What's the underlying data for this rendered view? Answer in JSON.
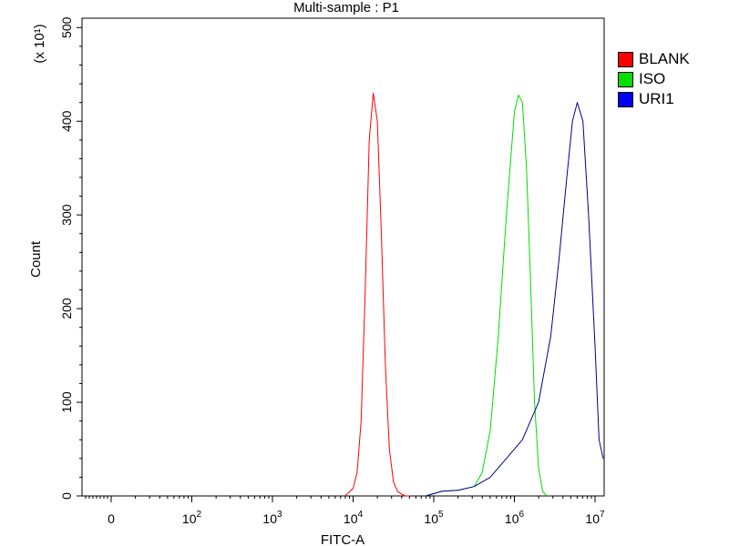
{
  "chart_data": {
    "type": "line",
    "title": "Multi-sample : P1",
    "xlabel": "FITC-A",
    "ylabel": "Count",
    "y_multiplier_label": "(x 10¹)",
    "x_scale": "biexponential",
    "xlim": [
      -2,
      7.1
    ],
    "ylim": [
      0,
      510
    ],
    "y_ticks": [
      0,
      100,
      200,
      300,
      400,
      500
    ],
    "x_tick_labels": [
      {
        "value": 0,
        "base": "0",
        "exp": ""
      },
      {
        "value": 2,
        "base": "10",
        "exp": "2"
      },
      {
        "value": 3,
        "base": "10",
        "exp": "3"
      },
      {
        "value": 4,
        "base": "10",
        "exp": "4"
      },
      {
        "value": 5,
        "base": "10",
        "exp": "5"
      },
      {
        "value": 6,
        "base": "10",
        "exp": "6"
      },
      {
        "value": 7,
        "base": "10",
        "exp": "7"
      }
    ],
    "legend_position": "right",
    "grid": false,
    "series": [
      {
        "name": "BLANK",
        "color": "#ff0000",
        "x": [
          3.9,
          4.0,
          4.05,
          4.1,
          4.15,
          4.2,
          4.25,
          4.3,
          4.35,
          4.4,
          4.45,
          4.5,
          4.55,
          4.6,
          4.65,
          4.7
        ],
        "y": [
          0,
          8,
          25,
          80,
          220,
          380,
          430,
          400,
          280,
          140,
          50,
          15,
          5,
          2,
          0,
          0
        ]
      },
      {
        "name": "ISO",
        "color": "#00dd00",
        "x": [
          4.9,
          5.1,
          5.3,
          5.5,
          5.6,
          5.7,
          5.8,
          5.9,
          6.0,
          6.05,
          6.1,
          6.15,
          6.2,
          6.25,
          6.3,
          6.35,
          6.4
        ],
        "y": [
          0,
          5,
          6,
          10,
          25,
          70,
          170,
          300,
          410,
          428,
          420,
          350,
          230,
          100,
          30,
          5,
          0
        ]
      },
      {
        "name": "URI1",
        "color": "#00008b",
        "x": [
          4.9,
          5.1,
          5.3,
          5.5,
          5.7,
          5.9,
          6.1,
          6.3,
          6.45,
          6.55,
          6.65,
          6.72,
          6.78,
          6.85,
          6.92,
          7.0,
          7.05,
          7.1
        ],
        "y": [
          0,
          5,
          6,
          10,
          20,
          40,
          60,
          100,
          170,
          250,
          340,
          400,
          420,
          400,
          300,
          160,
          60,
          40
        ]
      }
    ]
  }
}
